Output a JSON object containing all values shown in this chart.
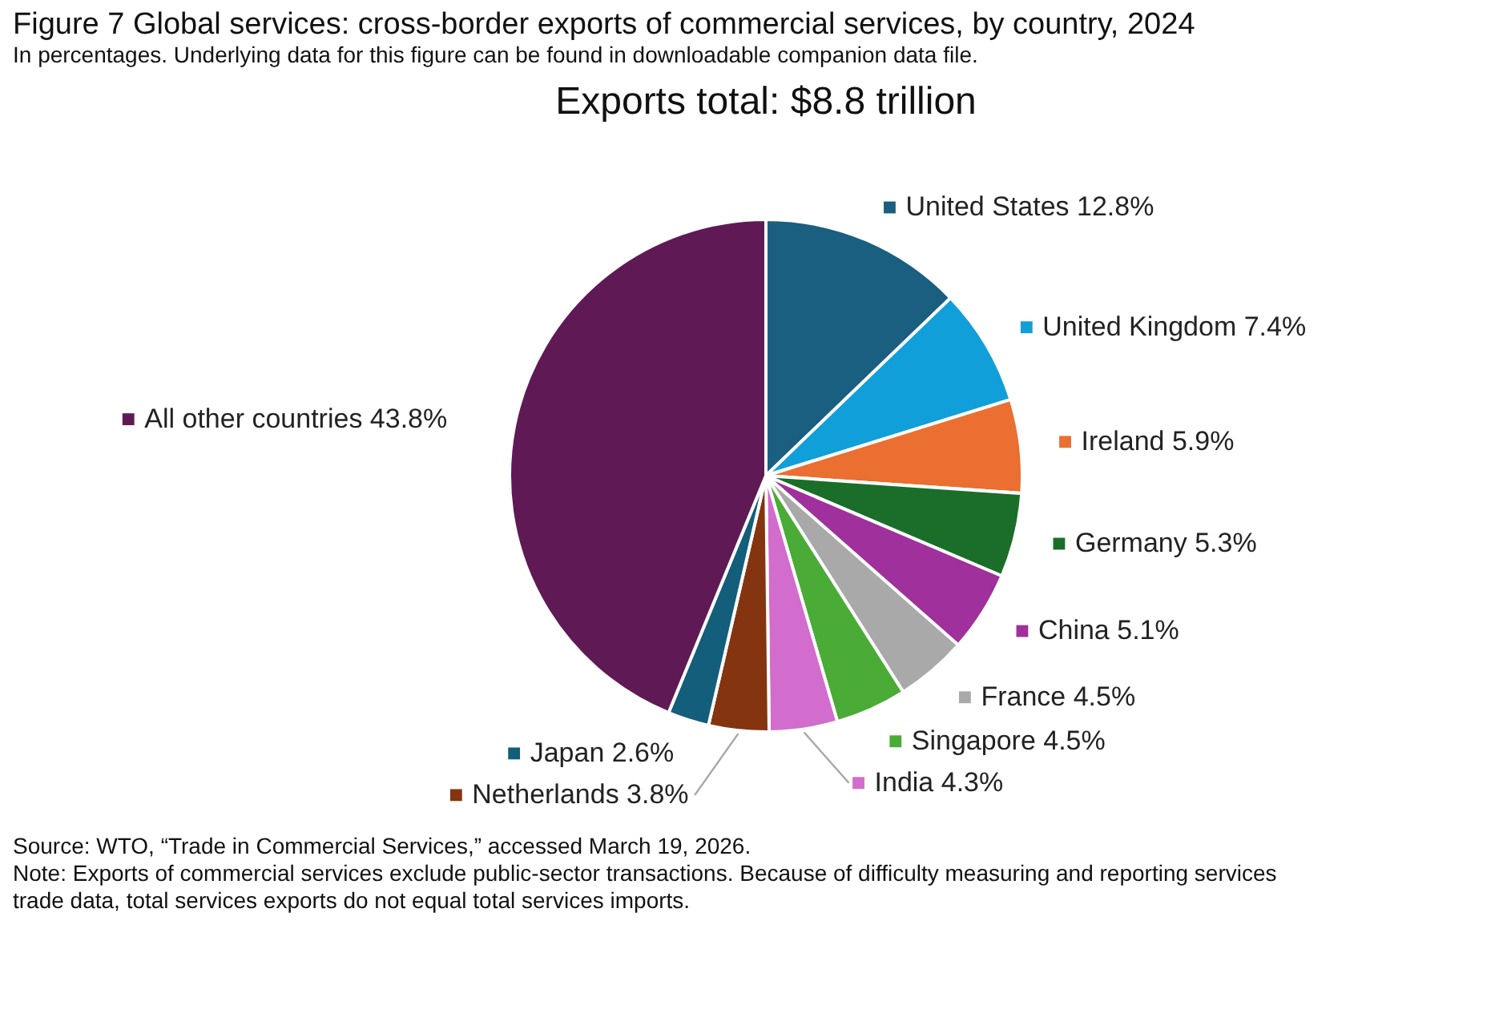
{
  "chart_data": {
    "type": "pie",
    "title": "Figure 7 Global services: cross-border exports of commercial services, by country, 2024",
    "subtitle": "In percentages. Underlying data for this figure can be found in downloadable companion data file.",
    "categories": [
      "United States",
      "United Kingdom",
      "Ireland",
      "Germany",
      "China",
      "France",
      "Singapore",
      "India",
      "Netherlands",
      "Japan",
      "All other countries"
    ],
    "values": [
      12.8,
      7.4,
      5.9,
      5.3,
      5.1,
      4.5,
      4.5,
      4.3,
      3.8,
      2.6,
      43.8
    ],
    "value_labels": [
      "12.8%",
      "7.4%",
      "5.9%",
      "5.3%",
      "5.1%",
      "4.5%",
      "4.5%",
      "4.3%",
      "3.8%",
      "2.6%",
      "43.8%"
    ],
    "colors": [
      "#1a5e80",
      "#119fd9",
      "#ea6f31",
      "#1b6e2a",
      "#a0309b",
      "#a9a9a9",
      "#4aab36",
      "#d26ccd",
      "#843510",
      "#135e7a",
      "#5f1a55"
    ],
    "legend": "bottom left",
    "annotations": [
      "Exports total: $8.8 trillion",
      "Source: WTO, “Trade in Commercial Services,” accessed March 19, 2026.",
      "Note: Exports of commercial services exclude public-sector transactions. Because of difficulty measuring and reporting services trade data, total services exports do not equal total services imports."
    ]
  }
}
